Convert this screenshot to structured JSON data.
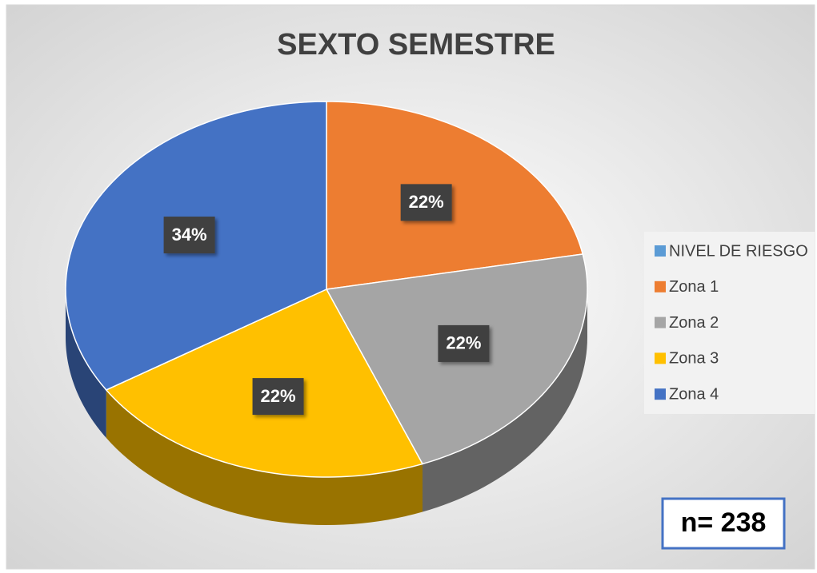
{
  "chart_data": {
    "type": "pie",
    "title": "SEXTO SEMESTRE",
    "categories": [
      "NIVEL DE RIESGO",
      "Zona 1",
      "Zona 2",
      "Zona 3",
      "Zona 4"
    ],
    "values": [
      0,
      22,
      22,
      22,
      34
    ],
    "value_labels": [
      null,
      "22%",
      "22%",
      "22%",
      "34%"
    ],
    "colors": [
      "#5B9BD5",
      "#ED7D31",
      "#A5A5A5",
      "#FFC000",
      "#4472C4"
    ],
    "legend": "right",
    "annotation": "n= 238"
  }
}
